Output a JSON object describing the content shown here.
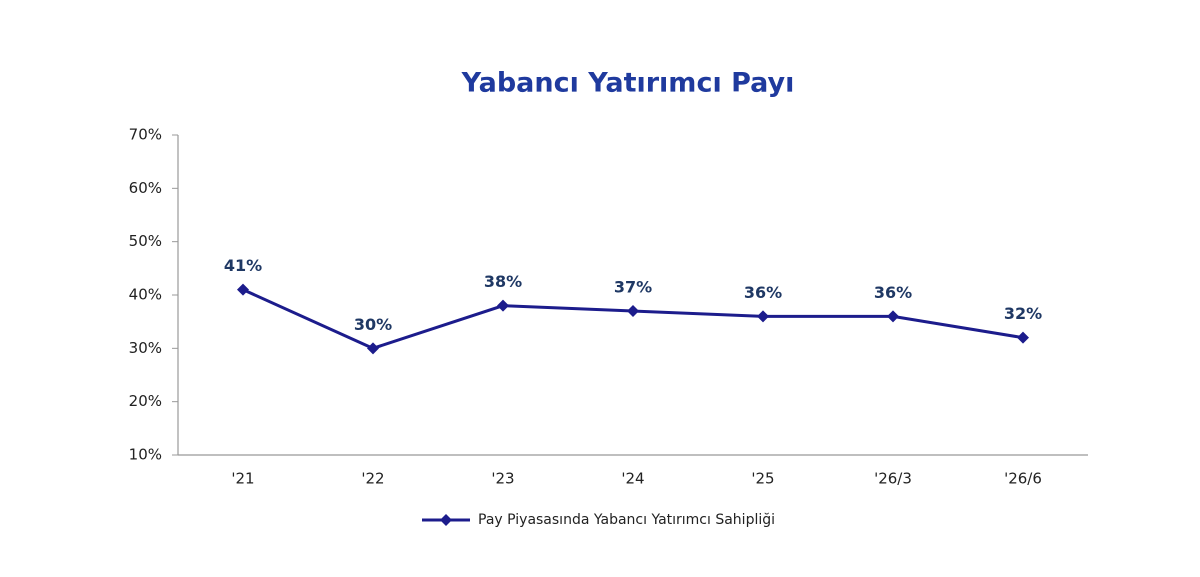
{
  "chart_data": {
    "type": "line",
    "title": "Yabancı Yatırımcı Payı",
    "categories": [
      "'21",
      "'22",
      "'23",
      "'24",
      "'25",
      "'26/3",
      "'26/6"
    ],
    "series": [
      {
        "name": "Pay Piyasasında Yabancı Yatırımcı Sahipliği",
        "color": "#1c1c8c",
        "values": [
          41,
          30,
          38,
          37,
          36,
          36,
          32
        ],
        "value_labels": [
          "41%",
          "30%",
          "38%",
          "37%",
          "36%",
          "36%",
          "32%"
        ]
      }
    ],
    "ylim": [
      10,
      70
    ],
    "yticks": [
      {
        "value": 10,
        "label": "10%"
      },
      {
        "value": 20,
        "label": "20%"
      },
      {
        "value": 30,
        "label": "30%"
      },
      {
        "value": 40,
        "label": "40%"
      },
      {
        "value": 50,
        "label": "50%"
      },
      {
        "value": 60,
        "label": "60%"
      },
      {
        "value": 70,
        "label": "70%"
      }
    ],
    "legend": "bottom"
  }
}
